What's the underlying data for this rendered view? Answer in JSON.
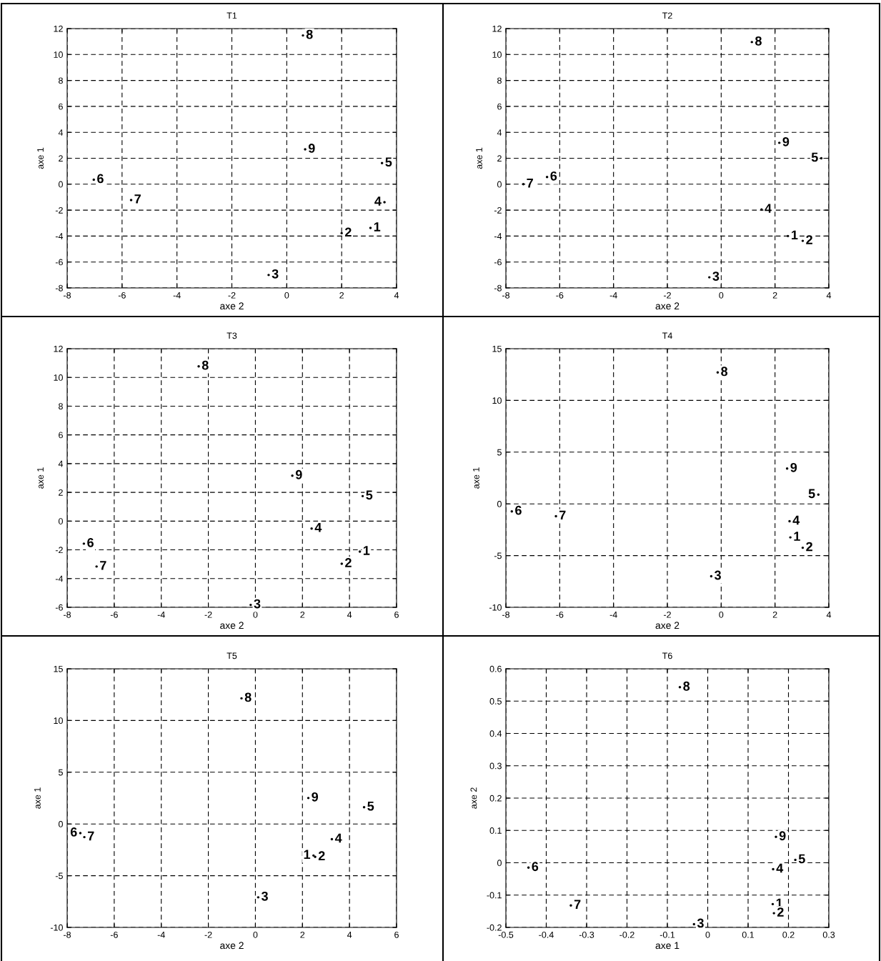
{
  "chart_data": [
    {
      "type": "scatter",
      "title": "T1",
      "xlabel": "axe 2",
      "ylabel": "axe 1",
      "grid": true,
      "xlim": [
        -8,
        4
      ],
      "ylim": [
        -8,
        12
      ],
      "xticks": [
        -8,
        -6,
        -4,
        -2,
        0,
        2,
        4
      ],
      "yticks": [
        -8,
        -6,
        -4,
        -2,
        0,
        2,
        4,
        6,
        8,
        10,
        12
      ],
      "series": [
        {
          "color": "#000000",
          "x": [
            3.05,
            2.0,
            -0.66,
            3.56,
            3.47,
            -7.03,
            -5.67,
            0.59,
            0.67
          ],
          "values": [
            -3.37,
            -3.78,
            -7.0,
            -1.39,
            1.63,
            0.35,
            -1.22,
            11.47,
            2.69
          ]
        }
      ],
      "annotations": [
        {
          "text": "1",
          "x": 3.05,
          "y": -3.37
        },
        {
          "text": "2",
          "x": 2.0,
          "y": -3.78
        },
        {
          "text": "3",
          "x": -0.66,
          "y": -7.0
        },
        {
          "text": "4",
          "x": 3.56,
          "y": -1.39
        },
        {
          "text": "5",
          "x": 3.47,
          "y": 1.63
        },
        {
          "text": "6",
          "x": -7.03,
          "y": 0.35
        },
        {
          "text": "7",
          "x": -5.67,
          "y": -1.22
        },
        {
          "text": "8",
          "x": 0.59,
          "y": 11.47
        },
        {
          "text": "9",
          "x": 0.67,
          "y": 2.69
        }
      ]
    },
    {
      "type": "scatter",
      "title": "T2",
      "xlabel": "axe 2",
      "ylabel": "axe 1",
      "grid": true,
      "xlim": [
        -8,
        4
      ],
      "ylim": [
        -8,
        12
      ],
      "xticks": [
        -8,
        -6,
        -4,
        -2,
        0,
        2,
        4
      ],
      "yticks": [
        -8,
        -6,
        -4,
        -2,
        0,
        2,
        4,
        6,
        8,
        10,
        12
      ],
      "series": [
        {
          "color": "#000000",
          "x": [
            2.48,
            3.03,
            -0.44,
            1.5,
            3.72,
            -6.47,
            -7.35,
            1.14,
            2.16
          ],
          "values": [
            -4.0,
            -4.37,
            -7.18,
            -1.95,
            2.0,
            0.55,
            0.0,
            10.96,
            3.19
          ]
        }
      ],
      "annotations": [
        {
          "text": "1",
          "x": 2.48,
          "y": -4.0
        },
        {
          "text": "2",
          "x": 3.03,
          "y": -4.37
        },
        {
          "text": "3",
          "x": -0.44,
          "y": -7.18
        },
        {
          "text": "4",
          "x": 1.5,
          "y": -1.95
        },
        {
          "text": "5",
          "x": 3.72,
          "y": 2.0
        },
        {
          "text": "6",
          "x": -6.47,
          "y": 0.55
        },
        {
          "text": "7",
          "x": -7.35,
          "y": 0.0
        },
        {
          "text": "8",
          "x": 1.14,
          "y": 10.96
        },
        {
          "text": "9",
          "x": 2.16,
          "y": 3.19
        }
      ]
    },
    {
      "type": "scatter",
      "title": "T3",
      "xlabel": "axe 2",
      "ylabel": "axe 1",
      "grid": true,
      "xlim": [
        -8,
        6
      ],
      "ylim": [
        -6,
        12
      ],
      "xticks": [
        -8,
        -6,
        -4,
        -2,
        0,
        2,
        4,
        6
      ],
      "yticks": [
        -6,
        -4,
        -2,
        0,
        2,
        4,
        6,
        8,
        10,
        12
      ],
      "series": [
        {
          "color": "#000000",
          "x": [
            4.44,
            3.67,
            -0.2,
            2.39,
            4.56,
            -7.29,
            -6.75,
            -2.41,
            1.57
          ],
          "values": [
            -2.12,
            -2.97,
            -5.83,
            -0.52,
            1.74,
            -1.57,
            -3.16,
            10.77,
            3.16
          ]
        }
      ],
      "annotations": [
        {
          "text": "1",
          "x": 4.44,
          "y": -2.12
        },
        {
          "text": "2",
          "x": 3.67,
          "y": -2.97
        },
        {
          "text": "3",
          "x": -0.2,
          "y": -5.83
        },
        {
          "text": "4",
          "x": 2.39,
          "y": -0.52
        },
        {
          "text": "5",
          "x": 4.56,
          "y": 1.74
        },
        {
          "text": "6",
          "x": -7.29,
          "y": -1.57
        },
        {
          "text": "7",
          "x": -6.75,
          "y": -3.16
        },
        {
          "text": "8",
          "x": -2.41,
          "y": 10.77
        },
        {
          "text": "9",
          "x": 1.57,
          "y": 3.16
        }
      ]
    },
    {
      "type": "scatter",
      "title": "T4",
      "xlabel": "axe 2",
      "ylabel": "axe 1",
      "grid": true,
      "xlim": [
        -8,
        4
      ],
      "ylim": [
        -10,
        15
      ],
      "xticks": [
        -8,
        -6,
        -4,
        -2,
        0,
        2,
        4
      ],
      "yticks": [
        -10,
        -5,
        0,
        5,
        10,
        15
      ],
      "series": [
        {
          "color": "#000000",
          "x": [
            2.57,
            3.03,
            -0.37,
            2.54,
            3.61,
            -7.78,
            -6.14,
            -0.13,
            2.45
          ],
          "values": [
            -3.24,
            -4.24,
            -7.0,
            -1.68,
            0.89,
            -0.73,
            -1.19,
            12.7,
            3.41
          ]
        }
      ],
      "annotations": [
        {
          "text": "1",
          "x": 2.57,
          "y": -3.24
        },
        {
          "text": "2",
          "x": 3.03,
          "y": -4.24
        },
        {
          "text": "3",
          "x": -0.37,
          "y": -7.0
        },
        {
          "text": "4",
          "x": 2.54,
          "y": -1.68
        },
        {
          "text": "5",
          "x": 3.61,
          "y": 0.89
        },
        {
          "text": "6",
          "x": -7.78,
          "y": -0.73
        },
        {
          "text": "7",
          "x": -6.14,
          "y": -1.19
        },
        {
          "text": "8",
          "x": -0.13,
          "y": 12.7
        },
        {
          "text": "9",
          "x": 2.45,
          "y": 3.41
        }
      ]
    },
    {
      "type": "scatter",
      "title": "T5",
      "xlabel": "axe 2",
      "ylabel": "axe 1",
      "grid": true,
      "xlim": [
        -8,
        6
      ],
      "ylim": [
        -10,
        15
      ],
      "xticks": [
        -8,
        -6,
        -4,
        -2,
        0,
        2,
        4,
        6
      ],
      "yticks": [
        -10,
        -5,
        0,
        5,
        10,
        15
      ],
      "series": [
        {
          "color": "#000000",
          "x": [
            2.47,
            2.54,
            0.12,
            3.25,
            4.62,
            -7.44,
            -7.27,
            -0.59,
            2.25
          ],
          "values": [
            -3.05,
            -3.18,
            -7.09,
            -1.47,
            1.62,
            -0.88,
            -1.27,
            12.14,
            2.51
          ]
        }
      ],
      "annotations": [
        {
          "text": "1",
          "x": 2.47,
          "y": -3.05
        },
        {
          "text": "2",
          "x": 2.54,
          "y": -3.18
        },
        {
          "text": "3",
          "x": 0.12,
          "y": -7.09
        },
        {
          "text": "4",
          "x": 3.25,
          "y": -1.47
        },
        {
          "text": "5",
          "x": 4.62,
          "y": 1.62
        },
        {
          "text": "6",
          "x": -7.44,
          "y": -0.88
        },
        {
          "text": "7",
          "x": -7.27,
          "y": -1.27
        },
        {
          "text": "8",
          "x": -0.59,
          "y": 12.14
        },
        {
          "text": "9",
          "x": 2.25,
          "y": 2.51
        }
      ]
    },
    {
      "type": "scatter",
      "title": "T6",
      "xlabel": "axe 1",
      "ylabel": "axe 2",
      "grid": true,
      "xlim": [
        -0.5,
        0.3
      ],
      "ylim": [
        -0.2,
        0.6
      ],
      "xticks": [
        -0.5,
        -0.4,
        -0.3,
        -0.2,
        -0.1,
        0,
        0.1,
        0.2,
        0.3
      ],
      "yticks": [
        -0.2,
        -0.1,
        0,
        0.1,
        0.2,
        0.3,
        0.4,
        0.5,
        0.6
      ],
      "series": [
        {
          "color": "#000000",
          "x": [
            0.161,
            0.164,
            -0.034,
            0.162,
            0.217,
            -0.444,
            -0.339,
            -0.069,
            0.169
          ],
          "values": [
            -0.128,
            -0.156,
            -0.19,
            -0.02,
            0.009,
            -0.015,
            -0.132,
            0.543,
            0.08
          ]
        }
      ],
      "annotations": [
        {
          "text": "1",
          "x": 0.161,
          "y": -0.128
        },
        {
          "text": "2",
          "x": 0.164,
          "y": -0.156
        },
        {
          "text": "3",
          "x": -0.034,
          "y": -0.19
        },
        {
          "text": "4",
          "x": 0.162,
          "y": -0.02
        },
        {
          "text": "5",
          "x": 0.217,
          "y": 0.009
        },
        {
          "text": "6",
          "x": -0.444,
          "y": -0.015
        },
        {
          "text": "7",
          "x": -0.339,
          "y": -0.132
        },
        {
          "text": "8",
          "x": -0.069,
          "y": 0.543
        },
        {
          "text": "9",
          "x": 0.169,
          "y": 0.08
        }
      ]
    }
  ]
}
